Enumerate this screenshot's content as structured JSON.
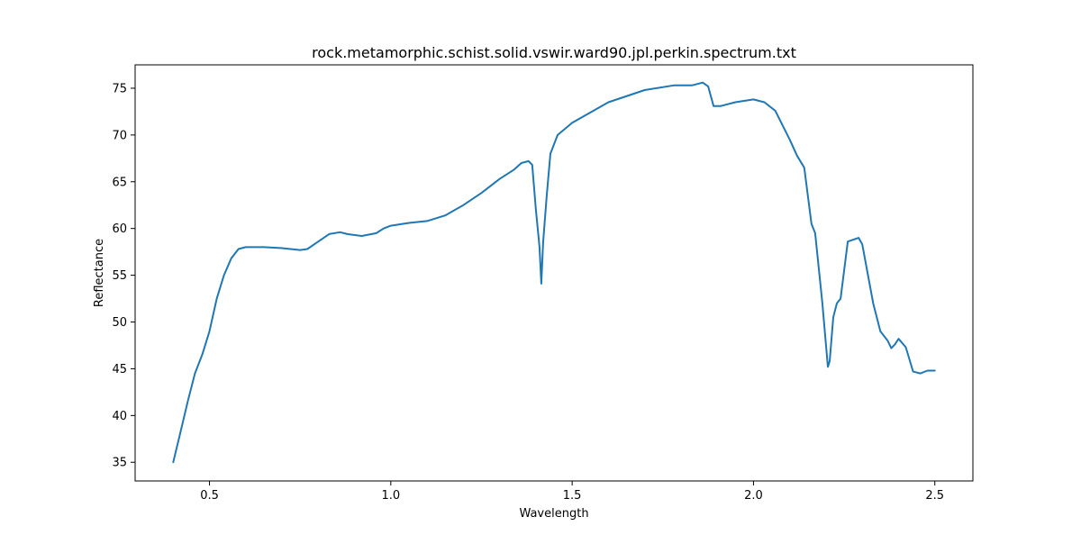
{
  "chart_data": {
    "type": "line",
    "title": "rock.metamorphic.schist.solid.vswir.ward90.jpl.perkin.spectrum.txt",
    "xlabel": "Wavelength",
    "ylabel": "Reflectance",
    "xlim": [
      0.295,
      2.605
    ],
    "ylim": [
      33.0,
      77.5
    ],
    "xticks": [
      0.5,
      1.0,
      1.5,
      2.0,
      2.5
    ],
    "xtick_labels": [
      "0.5",
      "1.0",
      "1.5",
      "2.0",
      "2.5"
    ],
    "yticks": [
      35,
      40,
      45,
      50,
      55,
      60,
      65,
      70,
      75
    ],
    "ytick_labels": [
      "35",
      "40",
      "45",
      "50",
      "55",
      "60",
      "65",
      "70",
      "75"
    ],
    "grid": false,
    "legend": "none",
    "series": [
      {
        "color": "#1f77b4",
        "x": [
          0.4,
          0.42,
          0.44,
          0.46,
          0.48,
          0.5,
          0.52,
          0.54,
          0.56,
          0.58,
          0.6,
          0.65,
          0.7,
          0.75,
          0.77,
          0.8,
          0.83,
          0.86,
          0.88,
          0.92,
          0.96,
          0.98,
          1.0,
          1.05,
          1.1,
          1.15,
          1.2,
          1.25,
          1.3,
          1.34,
          1.36,
          1.38,
          1.39,
          1.4,
          1.41,
          1.415,
          1.42,
          1.43,
          1.44,
          1.46,
          1.5,
          1.6,
          1.7,
          1.78,
          1.83,
          1.86,
          1.875,
          1.89,
          1.91,
          1.95,
          2.0,
          2.03,
          2.06,
          2.1,
          2.12,
          2.14,
          2.16,
          2.17,
          2.19,
          2.205,
          2.21,
          2.22,
          2.23,
          2.24,
          2.26,
          2.29,
          2.3,
          2.33,
          2.35,
          2.37,
          2.38,
          2.39,
          2.4,
          2.42,
          2.44,
          2.46,
          2.48,
          2.5
        ],
        "y": [
          35.0,
          38.2,
          41.5,
          44.5,
          46.5,
          49.0,
          52.5,
          55.0,
          56.8,
          57.8,
          58.0,
          58.0,
          57.9,
          57.7,
          57.8,
          58.6,
          59.4,
          59.6,
          59.4,
          59.2,
          59.5,
          60.0,
          60.3,
          60.6,
          60.8,
          61.4,
          62.5,
          63.8,
          65.3,
          66.3,
          67.0,
          67.2,
          66.8,
          62.0,
          58.0,
          54.1,
          58.5,
          63.5,
          68.0,
          70.0,
          71.3,
          73.5,
          74.8,
          75.3,
          75.3,
          75.6,
          75.2,
          73.1,
          73.1,
          73.5,
          73.8,
          73.5,
          72.6,
          69.5,
          67.8,
          66.5,
          60.5,
          59.5,
          52.0,
          45.2,
          45.8,
          50.5,
          52.0,
          52.5,
          58.6,
          59.0,
          58.3,
          52.0,
          49.0,
          48.0,
          47.2,
          47.6,
          48.2,
          47.3,
          44.7,
          44.5,
          44.8,
          44.8
        ]
      }
    ]
  }
}
